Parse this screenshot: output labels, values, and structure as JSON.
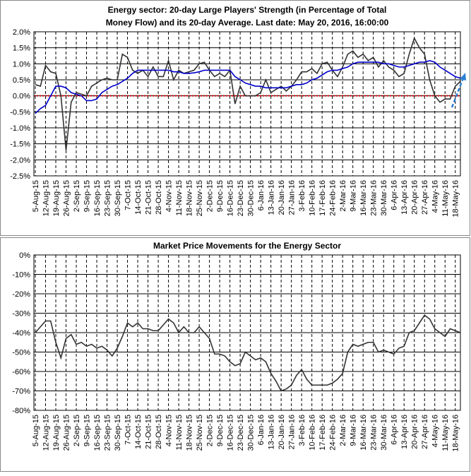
{
  "chart_data": [
    {
      "type": "line",
      "title": "Energy sector: 20-day Large Players' Strength (in Percentage of Total Money Flow) and its 20-day Average. Last date: May 20, 2016, 16:00:00",
      "categories": [
        "5-Aug-15",
        null,
        "12-Aug-15",
        null,
        "19-Aug-15",
        null,
        "26-Aug-15",
        null,
        "2-Sep-15",
        null,
        "9-Sep-15",
        null,
        "16-Sep-15",
        null,
        "23-Sep-15",
        null,
        "30-Sep-15",
        null,
        "7-Oct-15",
        null,
        "14-Oct-15",
        null,
        "21-Oct-15",
        null,
        "28-Oct-15",
        null,
        "4-Nov-15",
        null,
        "11-Nov-15",
        null,
        "18-Nov-15",
        null,
        "25-Nov-15",
        null,
        "2-Dec-15",
        null,
        "9-Dec-15",
        null,
        "16-Dec-15",
        null,
        "23-Dec-15",
        null,
        "30-Dec-15",
        null,
        "6-Jan-16",
        null,
        "13-Jan-16",
        null,
        "20-Jan-16",
        null,
        "27-Jan-16",
        null,
        "3-Feb-16",
        null,
        "10-Feb-16",
        null,
        "17-Feb-16",
        null,
        "24-Feb-16",
        null,
        "2-Mar-16",
        null,
        "9-Mar-16",
        null,
        "16-Mar-16",
        null,
        "23-Mar-16",
        null,
        "30-Mar-16",
        null,
        "6-Apr-16",
        null,
        "13-Apr-16",
        null,
        "20-Apr-16",
        null,
        "27-Apr-16",
        null,
        "4-May-16",
        null,
        "11-May-16",
        null,
        "18-May-16",
        null
      ],
      "series": [
        {
          "color": "#333333",
          "values": [
            0.35,
            0.3,
            0.95,
            0.75,
            0.7,
            0.0,
            -1.7,
            -0.2,
            0.1,
            0.05,
            0.0,
            0.3,
            0.4,
            0.5,
            0.55,
            0.5,
            0.5,
            1.3,
            1.2,
            0.8,
            0.7,
            0.8,
            0.6,
            0.9,
            0.6,
            0.6,
            1.1,
            0.5,
            0.8,
            0.7,
            0.75,
            0.8,
            1.0,
            1.05,
            0.8,
            0.6,
            0.7,
            0.6,
            0.8,
            -0.25,
            0.3,
            0.0,
            0.0,
            0.0,
            0.1,
            0.5,
            0.1,
            0.2,
            0.3,
            0.15,
            0.3,
            0.5,
            0.75,
            0.75,
            0.85,
            0.7,
            1.0,
            1.05,
            0.8,
            0.6,
            0.9,
            1.3,
            1.4,
            1.2,
            1.3,
            1.1,
            1.2,
            0.9,
            1.1,
            0.9,
            0.8,
            0.6,
            0.7,
            1.3,
            1.8,
            1.5,
            1.3,
            0.5,
            0.0,
            -0.2,
            -0.1,
            -0.1,
            0.3,
            0.45
          ]
        },
        {
          "color": "#0000cc",
          "values": [
            -0.55,
            -0.4,
            -0.3,
            0.0,
            0.3,
            0.3,
            0.25,
            0.1,
            0.05,
            0.0,
            -0.15,
            -0.15,
            -0.1,
            0.1,
            0.2,
            0.3,
            0.35,
            0.45,
            0.55,
            0.7,
            0.8,
            0.8,
            0.8,
            0.8,
            0.8,
            0.8,
            0.8,
            0.75,
            0.75,
            0.7,
            0.7,
            0.72,
            0.75,
            0.8,
            0.8,
            0.8,
            0.8,
            0.8,
            0.8,
            0.6,
            0.5,
            0.4,
            0.35,
            0.3,
            0.3,
            0.25,
            0.25,
            0.25,
            0.25,
            0.25,
            0.3,
            0.35,
            0.35,
            0.4,
            0.5,
            0.55,
            0.65,
            0.75,
            0.8,
            0.8,
            0.85,
            0.9,
            1.0,
            1.05,
            1.05,
            1.05,
            1.05,
            1.05,
            1.0,
            1.0,
            0.95,
            0.9,
            0.9,
            0.95,
            1.0,
            1.05,
            1.05,
            1.1,
            1.05,
            0.9,
            0.8,
            0.7,
            0.6,
            0.55
          ]
        }
      ],
      "ylim": [
        -2.5,
        2.0
      ],
      "yticks": [
        {
          "value": 2.0,
          "label": "2.0%"
        },
        {
          "value": 1.5,
          "label": "1.5%"
        },
        {
          "value": 1.0,
          "label": "1.0%"
        },
        {
          "value": 0.5,
          "label": "0.5%"
        },
        {
          "value": 0.0,
          "label": "0.0%"
        },
        {
          "value": -0.5,
          "label": "-0.5%"
        },
        {
          "value": -1.0,
          "label": "-1.0%"
        },
        {
          "value": -1.5,
          "label": "-1.5%"
        },
        {
          "value": -2.0,
          "label": "-2.0%"
        },
        {
          "value": -2.5,
          "label": "-2.5%"
        }
      ],
      "grid": true,
      "zero_line_color": "#dd0000"
    },
    {
      "type": "line",
      "title": "Market Price Movements for the Energy Sector",
      "categories": [
        "5-Aug-15",
        null,
        "12-Aug-15",
        null,
        "19-Aug-15",
        null,
        "26-Aug-15",
        null,
        "2-Sep-15",
        null,
        "9-Sep-15",
        null,
        "16-Sep-15",
        null,
        "23-Sep-15",
        null,
        "30-Sep-15",
        null,
        "7-Oct-15",
        null,
        "14-Oct-15",
        null,
        "21-Oct-15",
        null,
        "28-Oct-15",
        null,
        "4-Nov-15",
        null,
        "11-Nov-15",
        null,
        "18-Nov-15",
        null,
        "25-Nov-15",
        null,
        "2-Dec-15",
        null,
        "9-Dec-15",
        null,
        "16-Dec-15",
        null,
        "23-Dec-15",
        null,
        "30-Dec-15",
        null,
        "6-Jan-16",
        null,
        "13-Jan-16",
        null,
        "20-Jan-16",
        null,
        "27-Jan-16",
        null,
        "3-Feb-16",
        null,
        "10-Feb-16",
        null,
        "17-Feb-16",
        null,
        "24-Feb-16",
        null,
        "2-Mar-16",
        null,
        "9-Mar-16",
        null,
        "16-Mar-16",
        null,
        "23-Mar-16",
        null,
        "30-Mar-16",
        null,
        "6-Apr-16",
        null,
        "13-Apr-16",
        null,
        "20-Apr-16",
        null,
        "27-Apr-16",
        null,
        "4-May-16",
        null,
        "11-May-16",
        null,
        "18-May-16",
        null
      ],
      "series": [
        {
          "color": "#333333",
          "values": [
            -40,
            -37,
            -34,
            -34,
            -45,
            -53,
            -43,
            -41,
            -46,
            -45,
            -47,
            -46,
            -48,
            -47,
            -49,
            -52,
            -48,
            -42,
            -35,
            -37,
            -35,
            -38,
            -38,
            -39,
            -39,
            -36,
            -33,
            -35,
            -40,
            -37,
            -40,
            -40,
            -37,
            -40,
            -43,
            -51,
            -51,
            -52,
            -55,
            -57,
            -56,
            -50,
            -52,
            -54,
            -53,
            -55,
            -61,
            -65,
            -70,
            -69,
            -67,
            -62,
            -59,
            -64,
            -67,
            -67,
            -67,
            -67,
            -66,
            -64,
            -61,
            -50,
            -46,
            -47,
            -46,
            -45,
            -45,
            -50,
            -49,
            -50,
            -51,
            -48,
            -47,
            -40,
            -39,
            -35,
            -31,
            -33,
            -38,
            -40,
            -42,
            -38,
            -39,
            -40
          ]
        }
      ],
      "ylim": [
        -80,
        0
      ],
      "yticks": [
        0,
        {
          "value": -10,
          "label": "-10%"
        },
        {
          "value": -20,
          "label": "-20%"
        },
        {
          "value": -30,
          "label": "-30%"
        },
        {
          "value": -40,
          "label": "-40%"
        },
        {
          "value": -50,
          "label": "-50%"
        },
        {
          "value": -60,
          "label": "-60%"
        },
        {
          "value": -70,
          "label": "-70%"
        },
        {
          "value": -80,
          "label": "-80%"
        }
      ],
      "zero_tick_label": "0%",
      "grid": true
    }
  ]
}
